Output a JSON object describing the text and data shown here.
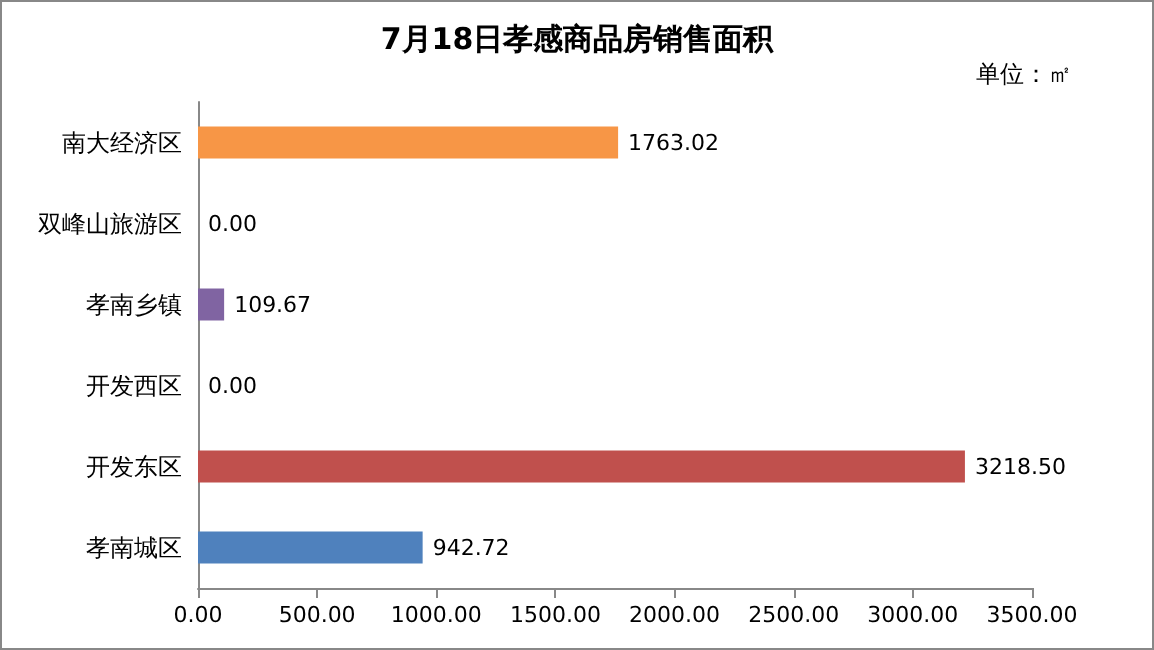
{
  "chart_data": {
    "type": "bar",
    "orientation": "horizontal",
    "title": "7月18日孝感商品房销售面积",
    "annotations": [
      "单位：㎡"
    ],
    "categories": [
      "南大经济区",
      "双峰山旅游区",
      "孝南乡镇",
      "开发西区",
      "开发东区",
      "孝南城区"
    ],
    "values": [
      1763.02,
      0,
      109.67,
      0,
      3218.5,
      942.72
    ],
    "colors": [
      "#f79646",
      "#9bbb59",
      "#8064a2",
      "#4bacc6",
      "#c0504d",
      "#4f81bd"
    ],
    "value_labels": [
      "1763.02",
      "0.00",
      "109.67",
      "0.00",
      "3218.50",
      "942.72"
    ],
    "xlim": [
      0,
      3500
    ],
    "xticks": [
      {
        "value": 0,
        "label": "0.00"
      },
      {
        "value": 500,
        "label": "500.00"
      },
      {
        "value": 1000,
        "label": "1000.00"
      },
      {
        "value": 1500,
        "label": "1500.00"
      },
      {
        "value": 2000,
        "label": "2000.00"
      },
      {
        "value": 2500,
        "label": "2500.00"
      },
      {
        "value": 3000,
        "label": "3000.00"
      },
      {
        "value": 3500,
        "label": "3500.00"
      }
    ],
    "grid": false
  }
}
